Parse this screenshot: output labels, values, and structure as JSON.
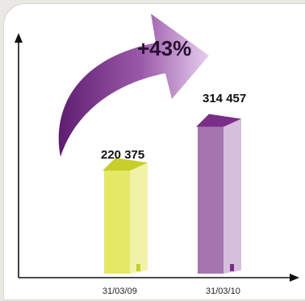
{
  "chart_data": {
    "type": "bar",
    "categories": [
      "31/03/09",
      "31/03/10"
    ],
    "values": [
      220375,
      314457
    ],
    "value_labels": [
      "220 375",
      "314 457"
    ],
    "growth_label": "+43%",
    "title": "",
    "xlabel": "",
    "ylabel": "",
    "grid": false,
    "legend": "none",
    "colors": {
      "bar_2009_front": "#e5e865",
      "bar_2009_side": "#f1f2a8",
      "bar_2009_roof": "#c8cf2a",
      "bar_2010_front": "#a575b0",
      "bar_2010_side": "#d6bfdc",
      "bar_2010_roof": "#7b2d8a",
      "arrow_dark": "#5e1d70",
      "arrow_light": "#e6cfee",
      "axis": "#111111"
    }
  }
}
